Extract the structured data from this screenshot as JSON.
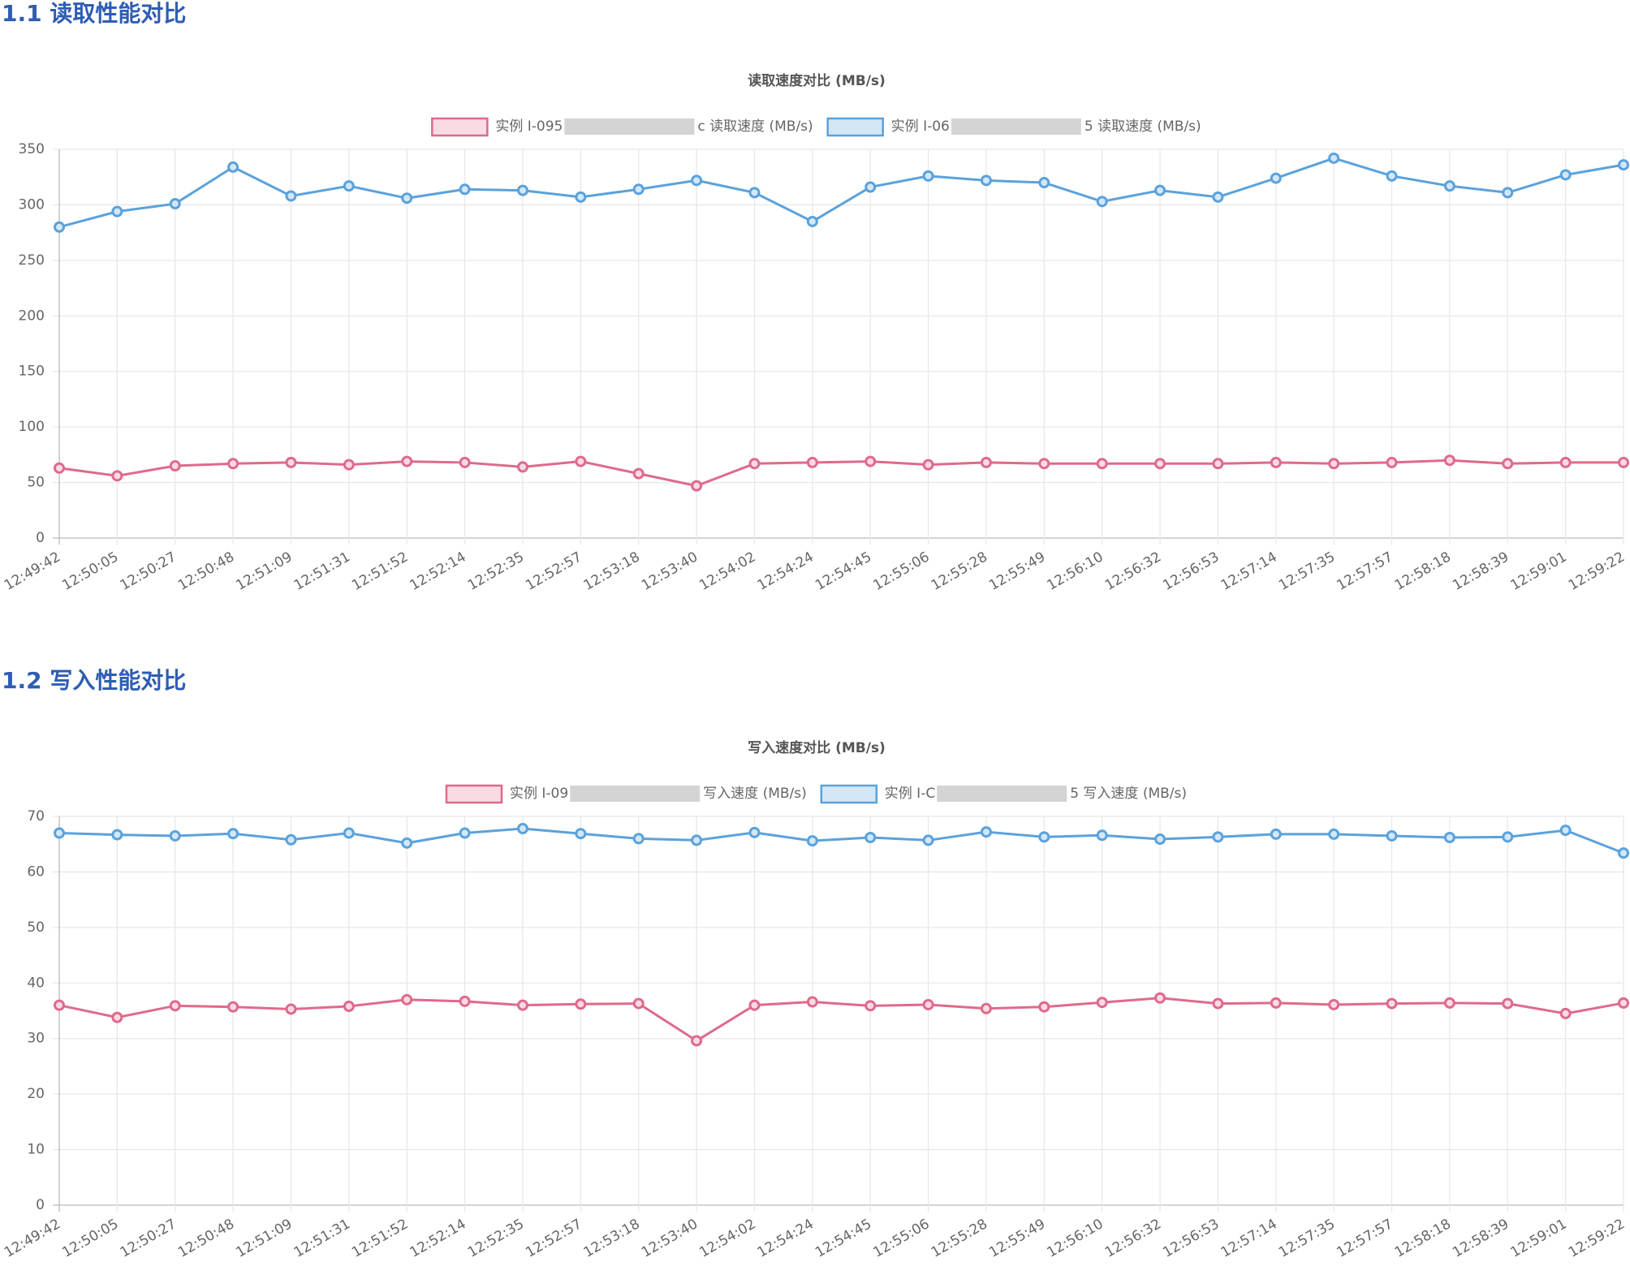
{
  "headings": [
    "1.1 读取性能对比",
    "1.2 写入性能对比"
  ],
  "chart_data": [
    {
      "type": "line",
      "title": "读取速度对比 (MB/s)",
      "categories": [
        "12:49:42",
        "12:50:05",
        "12:50:27",
        "12:50:48",
        "12:51:09",
        "12:51:31",
        "12:51:52",
        "12:52:14",
        "12:52:35",
        "12:52:57",
        "12:53:18",
        "12:53:40",
        "12:54:02",
        "12:54:24",
        "12:54:45",
        "12:55:06",
        "12:55:28",
        "12:55:49",
        "12:56:10",
        "12:56:32",
        "12:56:53",
        "12:57:14",
        "12:57:35",
        "12:57:57",
        "12:58:18",
        "12:58:39",
        "12:59:01",
        "12:59:22"
      ],
      "series": [
        {
          "name": "实例 I-095",
          "name_tail": "c 读取速度 (MB/s)",
          "color": "#de6a8c",
          "fill": "#fadbe3",
          "values": [
            63,
            56,
            65,
            67,
            68,
            66,
            69,
            68,
            64,
            69,
            58,
            47,
            67,
            68,
            69,
            66,
            68,
            67,
            67,
            67,
            67,
            68,
            67,
            68,
            70,
            67,
            68,
            68
          ]
        },
        {
          "name": "实例 I-06",
          "name_tail": "5 读取速度 (MB/s)",
          "color": "#5aa2dc",
          "fill": "#d4e7f7",
          "values": [
            280,
            294,
            301,
            334,
            308,
            317,
            306,
            314,
            313,
            307,
            314,
            322,
            311,
            285,
            316,
            326,
            322,
            320,
            303,
            313,
            307,
            324,
            342,
            326,
            317,
            311,
            327,
            336
          ]
        }
      ],
      "ylim": [
        0,
        350
      ],
      "yticks": [
        0,
        50,
        100,
        150,
        200,
        250,
        300,
        350
      ],
      "grid": true
    },
    {
      "type": "line",
      "title": "写入速度对比 (MB/s)",
      "categories": [
        "12:49:42",
        "12:50:05",
        "12:50:27",
        "12:50:48",
        "12:51:09",
        "12:51:31",
        "12:51:52",
        "12:52:14",
        "12:52:35",
        "12:52:57",
        "12:53:18",
        "12:53:40",
        "12:54:02",
        "12:54:24",
        "12:54:45",
        "12:55:06",
        "12:55:28",
        "12:55:49",
        "12:56:10",
        "12:56:32",
        "12:56:53",
        "12:57:14",
        "12:57:35",
        "12:57:57",
        "12:58:18",
        "12:58:39",
        "12:59:01",
        "12:59:22"
      ],
      "series": [
        {
          "name": "实例 I-09",
          "name_tail": "写入速度 (MB/s)",
          "color": "#de6a8c",
          "fill": "#fadbe3",
          "values": [
            36,
            33.8,
            35.9,
            35.7,
            35.3,
            35.8,
            37,
            36.7,
            36,
            36.2,
            36.3,
            29.6,
            36,
            36.6,
            35.9,
            36.1,
            35.4,
            35.7,
            36.5,
            37.3,
            36.3,
            36.4,
            36.1,
            36.3,
            36.4,
            36.3,
            34.5,
            36.4
          ]
        },
        {
          "name": "实例 I-C",
          "name_tail": "5 写入速度 (MB/s)",
          "color": "#5aa2dc",
          "fill": "#d4e7f7",
          "values": [
            67,
            66.7,
            66.5,
            66.9,
            65.8,
            67,
            65.2,
            67,
            67.8,
            66.9,
            66,
            65.7,
            67.1,
            65.6,
            66.2,
            65.7,
            67.2,
            66.3,
            66.6,
            65.9,
            66.3,
            66.8,
            66.8,
            66.5,
            66.2,
            66.3,
            67.5,
            63.4
          ]
        }
      ],
      "ylim": [
        0,
        70
      ],
      "yticks": [
        0,
        10,
        20,
        30,
        40,
        50,
        60,
        70
      ],
      "grid": true
    }
  ]
}
